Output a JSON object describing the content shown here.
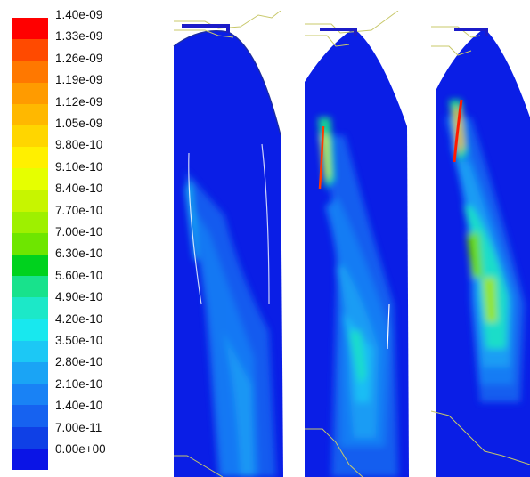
{
  "colorbar": {
    "ticks": [
      "1.40e-09",
      "1.33e-09",
      "1.26e-09",
      "1.19e-09",
      "1.12e-09",
      "1.05e-09",
      "9.80e-10",
      "9.10e-10",
      "8.40e-10",
      "7.70e-10",
      "7.00e-10",
      "6.30e-10",
      "5.60e-10",
      "4.90e-10",
      "4.20e-10",
      "3.50e-10",
      "2.80e-10",
      "2.10e-10",
      "1.40e-10",
      "7.00e-11",
      "0.00e+00"
    ],
    "colors": [
      "#ff0000",
      "#ff4a00",
      "#ff7800",
      "#ff9b00",
      "#ffb800",
      "#ffd600",
      "#fff000",
      "#e6ff00",
      "#c7f500",
      "#9ef000",
      "#6ee600",
      "#00d21e",
      "#18e28c",
      "#1ce8c8",
      "#18e8ee",
      "#1cc8f5",
      "#1aa4f5",
      "#1982f5",
      "#1662f0",
      "#0f40e6",
      "#0a14e6"
    ]
  },
  "panels": [
    {
      "name": "panel-1"
    },
    {
      "name": "panel-2"
    },
    {
      "name": "panel-3"
    }
  ]
}
